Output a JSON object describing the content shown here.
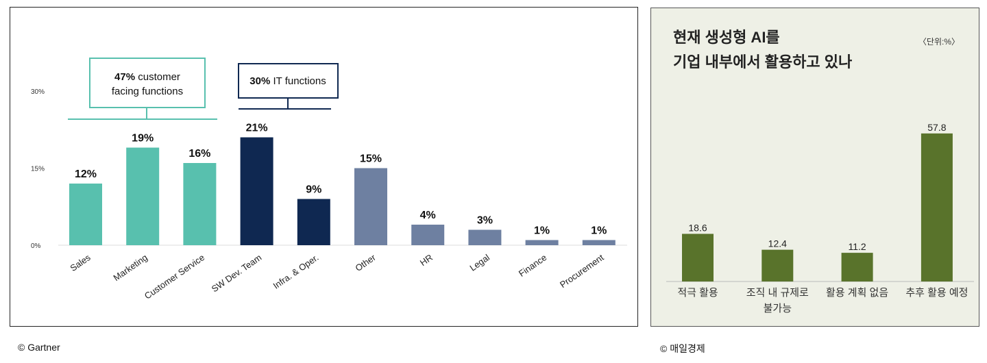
{
  "chart_data": [
    {
      "type": "bar",
      "categories": [
        "Sales",
        "Marketing",
        "Customer Service",
        "SW Dev. Team",
        "Infra. & Oper.",
        "Other",
        "HR",
        "Legal",
        "Finance",
        "Procurement"
      ],
      "values": [
        12,
        19,
        16,
        21,
        9,
        15,
        4,
        3,
        1,
        1
      ],
      "data_labels": [
        "12%",
        "19%",
        "16%",
        "21%",
        "9%",
        "15%",
        "4%",
        "3%",
        "1%",
        "1%"
      ],
      "bar_colors": [
        "#58c0ae",
        "#58c0ae",
        "#58c0ae",
        "#0f2851",
        "#0f2851",
        "#6e80a1",
        "#6e80a1",
        "#6e80a1",
        "#6e80a1",
        "#6e80a1"
      ],
      "yticks": [
        "0%",
        "15%",
        "30%"
      ],
      "ytick_values": [
        0,
        15,
        30
      ],
      "ylim": [
        0,
        30
      ],
      "grid": false,
      "annotations": [
        {
          "bold": "47%",
          "text": " customer",
          "line2": "facing functions",
          "color": "#58c0ae",
          "span": [
            0,
            2
          ]
        },
        {
          "bold": "30%",
          "text": " IT functions",
          "color": "#0f2851",
          "span": [
            3,
            4
          ]
        }
      ]
    },
    {
      "type": "bar",
      "title_lines": [
        "현재 생성형 AI를",
        "기업 내부에서 활용하고 있나"
      ],
      "unit": "〈단위:%〉",
      "categories": [
        [
          "적극 활용"
        ],
        [
          "조직 내 규제로",
          "불가능"
        ],
        [
          "활용 계획 없음"
        ],
        [
          "추후 활용 예정"
        ]
      ],
      "values": [
        18.6,
        12.4,
        11.2,
        57.8
      ],
      "data_labels": [
        "18.6",
        "12.4",
        "11.2",
        "57.8"
      ],
      "bar_color": "#59732b",
      "background": "#eef0e6",
      "grid": false
    }
  ],
  "credits": {
    "left": "© Gartner",
    "right": "© 매일경제"
  }
}
